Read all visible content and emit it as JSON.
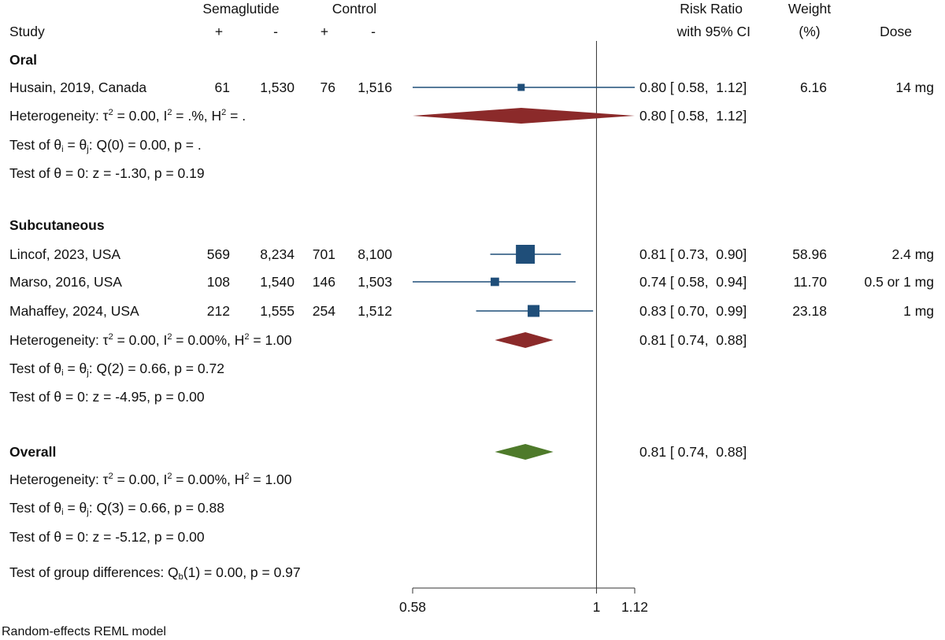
{
  "header": {
    "study": "Study",
    "group1": "Semaglutide",
    "group2": "Control",
    "plus": "+",
    "minus": "-",
    "rr_line1": "Risk Ratio",
    "rr_line2": "with 95% CI",
    "weight_line1": "Weight",
    "weight_line2": "(%)",
    "dose": "Dose"
  },
  "oral": {
    "label": "Oral",
    "rows": [
      {
        "study": "Husain, 2019, Canada",
        "s_pos": "61",
        "s_neg": "1,530",
        "c_pos": "76",
        "c_neg": "1,516",
        "ci": "0.80 [ 0.58,  1.12]",
        "weight": "6.16",
        "dose": "14 mg"
      }
    ],
    "het": {
      "a": "Heterogeneity: τ",
      "b": " = 0.00, I",
      "c": " = .%, H",
      "d": " = ."
    },
    "pooled_ci": "0.80 [ 0.58,  1.12]",
    "test_eq": {
      "a": "Test of θ",
      "b": " = θ",
      "c": ": Q(0) = 0.00, p = ."
    },
    "test_zero": "Test of θ = 0: z = -1.30, p = 0.19"
  },
  "subq": {
    "label": "Subcutaneous",
    "rows": [
      {
        "study": "Lincof, 2023, USA",
        "s_pos": "569",
        "s_neg": "8,234",
        "c_pos": "701",
        "c_neg": "8,100",
        "ci": "0.81 [ 0.73,  0.90]",
        "weight": "58.96",
        "dose": "2.4 mg"
      },
      {
        "study": "Marso, 2016, USA",
        "s_pos": "108",
        "s_neg": "1,540",
        "c_pos": "146",
        "c_neg": "1,503",
        "ci": "0.74 [ 0.58,  0.94]",
        "weight": "11.70",
        "dose": "0.5 or 1 mg"
      },
      {
        "study": "Mahaffey, 2024, USA",
        "s_pos": "212",
        "s_neg": "1,555",
        "c_pos": "254",
        "c_neg": "1,512",
        "ci": "0.83 [ 0.70,  0.99]",
        "weight": "23.18",
        "dose": "1 mg"
      }
    ],
    "het": {
      "a": "Heterogeneity: τ",
      "b": " = 0.00, I",
      "c": " = 0.00%, H",
      "d": " = 1.00"
    },
    "pooled_ci": "0.81 [ 0.74,  0.88]",
    "test_eq": {
      "a": "Test of θ",
      "b": " = θ",
      "c": ": Q(2) = 0.66, p = 0.72"
    },
    "test_zero": "Test of θ = 0: z = -4.95, p = 0.00"
  },
  "overall": {
    "label": "Overall",
    "pooled_ci": "0.81 [ 0.74,  0.88]",
    "het": {
      "a": "Heterogeneity: τ",
      "b": " = 0.00, I",
      "c": " = 0.00%, H",
      "d": " = 1.00"
    },
    "test_eq": {
      "a": "Test of θ",
      "b": " = θ",
      "c": ": Q(3) = 0.66, p = 0.88"
    },
    "test_zero": "Test of θ = 0: z = -5.12, p = 0.00",
    "group_diff": {
      "a": "Test of group differences: Q",
      "b": "(1) = 0.00, p = 0.97"
    }
  },
  "sup2": "2",
  "sub_i": "i",
  "sub_j": "j",
  "sub_b": "b",
  "footnote": "Random-effects REML model",
  "colors": {
    "study_marker": "#1f4e79",
    "subgroup_diamond": "#8b2a2a",
    "overall_diamond": "#4e7a2a",
    "axis": "#333333"
  },
  "chart_data": {
    "type": "forest",
    "x_scale": "log",
    "xlim": [
      0.58,
      1.12
    ],
    "xticks": [
      0.58,
      1,
      1.12
    ],
    "xtick_labels": [
      "0.58",
      "1",
      "1.12"
    ],
    "null_line": 1,
    "studies": [
      {
        "name": "Husain, 2019, Canada",
        "group": "Oral",
        "rr": 0.8,
        "lo": 0.58,
        "hi": 1.12,
        "weight": 6.16
      },
      {
        "name": "Lincof, 2023, USA",
        "group": "Subcutaneous",
        "rr": 0.81,
        "lo": 0.73,
        "hi": 0.9,
        "weight": 58.96
      },
      {
        "name": "Marso, 2016, USA",
        "group": "Subcutaneous",
        "rr": 0.74,
        "lo": 0.58,
        "hi": 0.94,
        "weight": 11.7
      },
      {
        "name": "Mahaffey, 2024, USA",
        "group": "Subcutaneous",
        "rr": 0.83,
        "lo": 0.7,
        "hi": 0.99,
        "weight": 23.18
      }
    ],
    "pooled": [
      {
        "group": "Oral",
        "rr": 0.8,
        "lo": 0.58,
        "hi": 1.12
      },
      {
        "group": "Subcutaneous",
        "rr": 0.81,
        "lo": 0.74,
        "hi": 0.88
      },
      {
        "group": "Overall",
        "rr": 0.81,
        "lo": 0.74,
        "hi": 0.88
      }
    ]
  }
}
